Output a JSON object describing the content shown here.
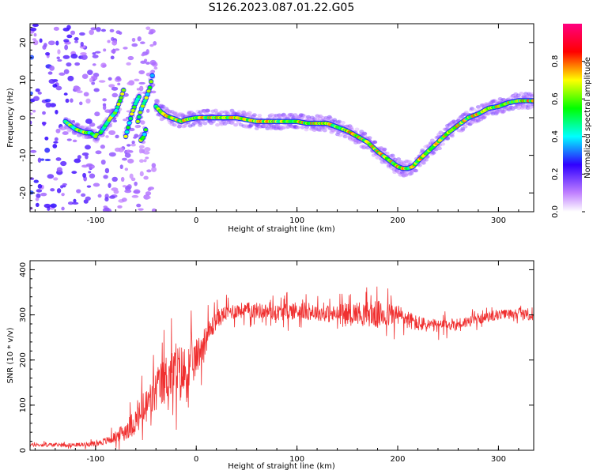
{
  "title": "S126.2023.087.01.22.G05",
  "chart_data": [
    {
      "type": "heatmap",
      "xlabel": "Height of straight line (km)",
      "ylabel": "Frequency (Hz)",
      "xlim": [
        -165,
        335
      ],
      "ylim": [
        -25,
        25
      ],
      "x_ticks": [
        -100,
        0,
        100,
        200,
        300
      ],
      "y_ticks": [
        -20,
        -10,
        0,
        10,
        20
      ],
      "colorbar": {
        "label": "Normalized spectral amplitude",
        "ticks": [
          0.0,
          0.2,
          0.4,
          0.6,
          0.8
        ],
        "range": [
          0,
          1
        ],
        "stops": [
          {
            "v": 0.0,
            "color": "#ffffff"
          },
          {
            "v": 0.1,
            "color": "#c080ff"
          },
          {
            "v": 0.25,
            "color": "#3000ff"
          },
          {
            "v": 0.4,
            "color": "#00ffff"
          },
          {
            "v": 0.55,
            "color": "#00ff00"
          },
          {
            "v": 0.7,
            "color": "#ffff00"
          },
          {
            "v": 0.85,
            "color": "#ff0000"
          },
          {
            "v": 1.0,
            "color": "#ff0080"
          }
        ]
      },
      "ridge": {
        "x": [
          -40,
          -35,
          -30,
          -25,
          -20,
          -15,
          -10,
          0,
          20,
          40,
          60,
          80,
          100,
          110,
          120,
          130,
          140,
          150,
          160,
          170,
          180,
          190,
          200,
          205,
          210,
          215,
          220,
          230,
          240,
          250,
          260,
          270,
          280,
          290,
          300,
          310,
          320,
          335
        ],
        "y": [
          3,
          1.5,
          0.5,
          0,
          -0.5,
          -1,
          -0.5,
          0,
          0,
          0,
          -1,
          -1,
          -1,
          -1.5,
          -1.5,
          -1.5,
          -2.5,
          -3.5,
          -5,
          -6.5,
          -9,
          -11,
          -13,
          -13.5,
          -13.5,
          -13,
          -11.5,
          -9,
          -6.5,
          -4,
          -2,
          0,
          1,
          2.5,
          3,
          4,
          4.5,
          4.5
        ]
      },
      "branches": [
        {
          "x": [
            -95,
            -90,
            -85,
            -80,
            -75,
            -72
          ],
          "y": [
            -4,
            -2,
            0,
            1.5,
            5,
            7.5
          ]
        },
        {
          "x": [
            -70,
            -67,
            -64,
            -60,
            -56
          ],
          "y": [
            -5,
            -2,
            1,
            4,
            6
          ]
        },
        {
          "x": [
            -58,
            -55,
            -50,
            -46,
            -43
          ],
          "y": [
            -1,
            2,
            5,
            8,
            12
          ]
        },
        {
          "x": [
            -55,
            -52,
            -50
          ],
          "y": [
            -6,
            -5,
            -3
          ]
        },
        {
          "x": [
            -130,
            -125,
            -120,
            -115,
            -110,
            -105,
            -100,
            -98
          ],
          "y": [
            -1,
            -2,
            -3,
            -3.5,
            -4,
            -4,
            -5,
            -4
          ]
        }
      ]
    },
    {
      "type": "line",
      "xlabel": "Height of straight line (km)",
      "ylabel": "SNR (10 * v/v)",
      "xlim": [
        -165,
        335
      ],
      "ylim": [
        0,
        420
      ],
      "x_ticks": [
        -100,
        0,
        100,
        200,
        300
      ],
      "y_ticks": [
        0,
        100,
        200,
        300,
        400
      ],
      "color": "#f03030",
      "envelope": {
        "x": [
          -165,
          -140,
          -120,
          -100,
          -90,
          -80,
          -70,
          -60,
          -50,
          -40,
          -30,
          -20,
          -10,
          0,
          10,
          20,
          30,
          40,
          60,
          80,
          100,
          120,
          140,
          160,
          180,
          200,
          220,
          240,
          260,
          280,
          300,
          320,
          335
        ],
        "mean": [
          12,
          12,
          12,
          15,
          20,
          30,
          45,
          65,
          95,
          130,
          160,
          175,
          170,
          205,
          250,
          290,
          305,
          310,
          310,
          305,
          310,
          305,
          300,
          305,
          300,
          300,
          280,
          275,
          280,
          290,
          300,
          305,
          295
        ],
        "spread": [
          6,
          6,
          6,
          8,
          12,
          18,
          30,
          45,
          60,
          70,
          80,
          85,
          95,
          60,
          45,
          30,
          25,
          25,
          25,
          25,
          30,
          25,
          30,
          35,
          45,
          35,
          25,
          20,
          20,
          15,
          15,
          15,
          15
        ]
      }
    }
  ]
}
